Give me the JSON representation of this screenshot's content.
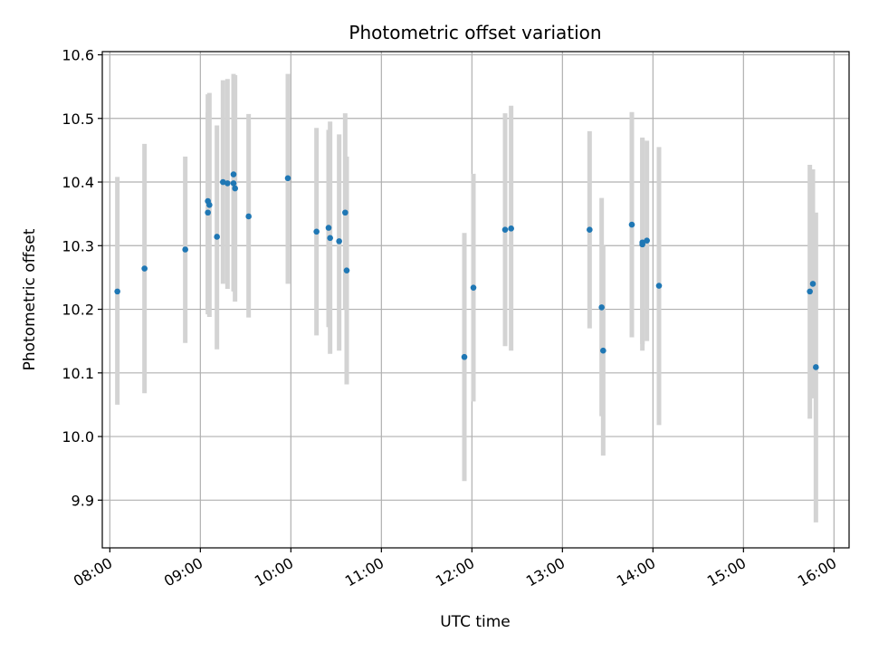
{
  "chart_data": {
    "type": "scatter",
    "title": "Photometric offset variation",
    "xlabel": "UTC time",
    "ylabel": "Photometric offset",
    "xlim": [
      "07:55",
      "16:10"
    ],
    "ylim": [
      9.825,
      10.605
    ],
    "grid": true,
    "x_ticks": [
      "08:00",
      "09:00",
      "10:00",
      "11:00",
      "12:00",
      "13:00",
      "14:00",
      "15:00",
      "16:00"
    ],
    "y_ticks": [
      9.9,
      10.0,
      10.1,
      10.2,
      10.3,
      10.4,
      10.5,
      10.6
    ],
    "y_tick_labels": [
      "9.9",
      "10.0",
      "10.1",
      "10.2",
      "10.3",
      "10.4",
      "10.5",
      "10.6"
    ],
    "marker_color": "#1f77b4",
    "errorbar_color": "#d3d3d3",
    "points": [
      {
        "time": "08:05",
        "y": 10.228,
        "err_low": 10.05,
        "err_high": 10.408
      },
      {
        "time": "08:23",
        "y": 10.264,
        "err_low": 10.068,
        "err_high": 10.46
      },
      {
        "time": "08:50",
        "y": 10.294,
        "err_low": 10.147,
        "err_high": 10.44
      },
      {
        "time": "09:05",
        "y": 10.352,
        "err_low": 10.192,
        "err_high": 10.51
      },
      {
        "time": "09:05",
        "y": 10.37,
        "err_low": 10.198,
        "err_high": 10.538
      },
      {
        "time": "09:06",
        "y": 10.364,
        "err_low": 10.188,
        "err_high": 10.54
      },
      {
        "time": "09:11",
        "y": 10.314,
        "err_low": 10.137,
        "err_high": 10.489
      },
      {
        "time": "09:15",
        "y": 10.4,
        "err_low": 10.24,
        "err_high": 10.56
      },
      {
        "time": "09:18",
        "y": 10.398,
        "err_low": 10.232,
        "err_high": 10.562
      },
      {
        "time": "09:22",
        "y": 10.412,
        "err_low": 10.255,
        "err_high": 10.57
      },
      {
        "time": "09:22",
        "y": 10.398,
        "err_low": 10.228,
        "err_high": 10.565
      },
      {
        "time": "09:23",
        "y": 10.39,
        "err_low": 10.212,
        "err_high": 10.568
      },
      {
        "time": "09:32",
        "y": 10.346,
        "err_low": 10.187,
        "err_high": 10.507
      },
      {
        "time": "09:58",
        "y": 10.406,
        "err_low": 10.24,
        "err_high": 10.57
      },
      {
        "time": "10:17",
        "y": 10.322,
        "err_low": 10.159,
        "err_high": 10.485
      },
      {
        "time": "10:25",
        "y": 10.328,
        "err_low": 10.172,
        "err_high": 10.482
      },
      {
        "time": "10:26",
        "y": 10.312,
        "err_low": 10.13,
        "err_high": 10.495
      },
      {
        "time": "10:32",
        "y": 10.307,
        "err_low": 10.135,
        "err_high": 10.475
      },
      {
        "time": "10:36",
        "y": 10.352,
        "err_low": 10.2,
        "err_high": 10.508
      },
      {
        "time": "10:37",
        "y": 10.261,
        "err_low": 10.082,
        "err_high": 10.44
      },
      {
        "time": "11:55",
        "y": 10.125,
        "err_low": 9.93,
        "err_high": 10.32
      },
      {
        "time": "12:01",
        "y": 10.234,
        "err_low": 10.055,
        "err_high": 10.413
      },
      {
        "time": "12:22",
        "y": 10.325,
        "err_low": 10.142,
        "err_high": 10.508
      },
      {
        "time": "12:26",
        "y": 10.327,
        "err_low": 10.135,
        "err_high": 10.52
      },
      {
        "time": "13:18",
        "y": 10.325,
        "err_low": 10.17,
        "err_high": 10.48
      },
      {
        "time": "13:26",
        "y": 10.203,
        "err_low": 10.032,
        "err_high": 10.375
      },
      {
        "time": "13:27",
        "y": 10.135,
        "err_low": 9.97,
        "err_high": 10.3
      },
      {
        "time": "13:46",
        "y": 10.333,
        "err_low": 10.156,
        "err_high": 10.51
      },
      {
        "time": "13:53",
        "y": 10.305,
        "err_low": 10.145,
        "err_high": 10.468
      },
      {
        "time": "13:53",
        "y": 10.302,
        "err_low": 10.135,
        "err_high": 10.47
      },
      {
        "time": "13:56",
        "y": 10.308,
        "err_low": 10.15,
        "err_high": 10.465
      },
      {
        "time": "14:04",
        "y": 10.237,
        "err_low": 10.018,
        "err_high": 10.455
      },
      {
        "time": "15:44",
        "y": 10.228,
        "err_low": 10.028,
        "err_high": 10.427
      },
      {
        "time": "15:46",
        "y": 10.24,
        "err_low": 10.06,
        "err_high": 10.42
      },
      {
        "time": "15:48",
        "y": 10.109,
        "err_low": 9.865,
        "err_high": 10.352
      }
    ]
  }
}
